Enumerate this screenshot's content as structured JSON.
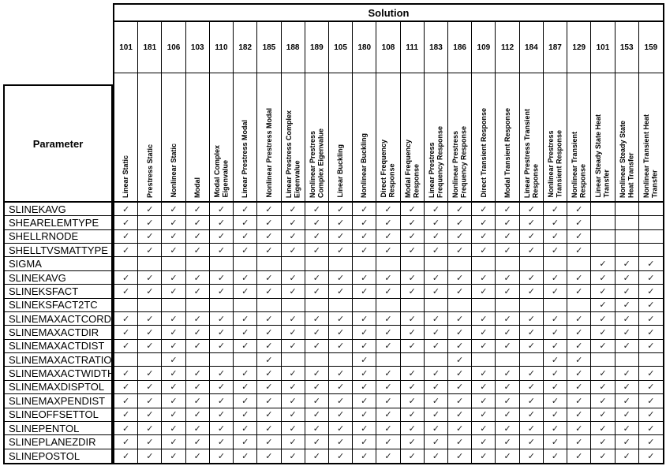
{
  "table": {
    "solution_header": "Solution",
    "parameter_header": "Parameter",
    "check_glyph": "✓",
    "colors": {
      "border": "#000000",
      "text": "#000000",
      "background": "#ffffff",
      "check": "#1c1c1c"
    },
    "columns": [
      {
        "code": "101",
        "label": "Linear Static"
      },
      {
        "code": "181",
        "label": "Prestress Static"
      },
      {
        "code": "106",
        "label": "Nonlinear Static"
      },
      {
        "code": "103",
        "label": "Modal"
      },
      {
        "code": "110",
        "label": "Modal Complex\nEigenvalue"
      },
      {
        "code": "182",
        "label": "Linear Prestress Modal"
      },
      {
        "code": "185",
        "label": "Nonlinear Prestress Modal"
      },
      {
        "code": "188",
        "label": "Linear Prestress Complex\nEigenvalue"
      },
      {
        "code": "189",
        "label": "Nonlinear Prestress\nComplex Eigenvalue"
      },
      {
        "code": "105",
        "label": "Linear Buckling"
      },
      {
        "code": "180",
        "label": "Nonlinear Buckling"
      },
      {
        "code": "108",
        "label": "Direct Frequency\nResponse"
      },
      {
        "code": "111",
        "label": "Modal Frequency\nResponse"
      },
      {
        "code": "183",
        "label": "Linear Prestress\nFrequency Response"
      },
      {
        "code": "186",
        "label": "Nonlinear Prestress\nFrequency Response"
      },
      {
        "code": "109",
        "label": "Direct Transient Response"
      },
      {
        "code": "112",
        "label": "Modal Transient Response"
      },
      {
        "code": "184",
        "label": "Linear Prestress Transient\nResponse"
      },
      {
        "code": "187",
        "label": "Nonlinear Prestress\nTransient Response"
      },
      {
        "code": "129",
        "label": "Nonlinear Transient\nResponse"
      },
      {
        "code": "101",
        "label": "Linear Steady State Heat\nTransfer"
      },
      {
        "code": "153",
        "label": "Nonlinear Steady State\nHeat Transfer"
      },
      {
        "code": "159",
        "label": "Nonlinear Transient Heat\nTransfer"
      }
    ],
    "rows": [
      {
        "name": "SLINEKAVG",
        "checks": [
          1,
          1,
          1,
          1,
          1,
          1,
          1,
          1,
          1,
          1,
          1,
          1,
          1,
          1,
          1,
          1,
          1,
          1,
          1,
          1,
          0,
          0,
          0
        ]
      },
      {
        "name": "SHEARELEMTYPE",
        "checks": [
          1,
          1,
          1,
          1,
          1,
          1,
          1,
          1,
          1,
          1,
          1,
          1,
          1,
          1,
          1,
          1,
          1,
          1,
          1,
          1,
          0,
          0,
          0
        ]
      },
      {
        "name": "SHELLRNODE",
        "checks": [
          1,
          1,
          1,
          1,
          1,
          1,
          1,
          1,
          1,
          1,
          1,
          1,
          1,
          1,
          1,
          1,
          1,
          1,
          1,
          1,
          0,
          0,
          0
        ]
      },
      {
        "name": "SHELLTVSMATTYPE",
        "checks": [
          1,
          1,
          1,
          1,
          1,
          1,
          1,
          1,
          1,
          1,
          1,
          1,
          1,
          1,
          1,
          1,
          1,
          1,
          1,
          1,
          0,
          0,
          0
        ]
      },
      {
        "name": "SIGMA",
        "checks": [
          0,
          0,
          0,
          0,
          0,
          0,
          0,
          0,
          0,
          0,
          0,
          0,
          0,
          0,
          0,
          0,
          0,
          0,
          0,
          0,
          1,
          1,
          1
        ]
      },
      {
        "name": "SLINEKAVG",
        "checks": [
          1,
          1,
          1,
          1,
          1,
          1,
          1,
          1,
          1,
          1,
          1,
          1,
          1,
          1,
          1,
          1,
          1,
          1,
          1,
          1,
          1,
          1,
          1
        ]
      },
      {
        "name": "SLINEKSFACT",
        "checks": [
          1,
          1,
          1,
          1,
          1,
          1,
          1,
          1,
          1,
          1,
          1,
          1,
          1,
          1,
          1,
          1,
          1,
          1,
          1,
          1,
          1,
          1,
          1
        ]
      },
      {
        "name": "SLINEKSFACT2TC",
        "checks": [
          0,
          0,
          0,
          0,
          0,
          0,
          0,
          0,
          0,
          0,
          0,
          0,
          0,
          0,
          0,
          0,
          0,
          0,
          0,
          0,
          1,
          1,
          1
        ]
      },
      {
        "name": "SLINEMAXACTCORD",
        "checks": [
          1,
          1,
          1,
          1,
          1,
          1,
          1,
          1,
          1,
          1,
          1,
          1,
          1,
          1,
          1,
          1,
          1,
          1,
          1,
          1,
          1,
          1,
          1
        ]
      },
      {
        "name": "SLINEMAXACTDIR",
        "checks": [
          1,
          1,
          1,
          1,
          1,
          1,
          1,
          1,
          1,
          1,
          1,
          1,
          1,
          1,
          1,
          1,
          1,
          1,
          1,
          1,
          1,
          1,
          1
        ]
      },
      {
        "name": "SLINEMAXACTDIST",
        "checks": [
          1,
          1,
          1,
          1,
          1,
          1,
          1,
          1,
          1,
          1,
          1,
          1,
          1,
          1,
          1,
          1,
          1,
          1,
          1,
          1,
          1,
          1,
          1
        ]
      },
      {
        "name": "SLINEMAXACTRATIO",
        "checks": [
          0,
          0,
          1,
          0,
          0,
          0,
          1,
          0,
          0,
          0,
          1,
          0,
          0,
          0,
          1,
          0,
          0,
          0,
          1,
          1,
          0,
          0,
          0
        ]
      },
      {
        "name": "SLINEMAXACTWIDTH",
        "checks": [
          1,
          1,
          1,
          1,
          1,
          1,
          1,
          1,
          1,
          1,
          1,
          1,
          1,
          1,
          1,
          1,
          1,
          1,
          1,
          1,
          1,
          1,
          1
        ]
      },
      {
        "name": "SLINEMAXDISPTOL",
        "checks": [
          1,
          1,
          1,
          1,
          1,
          1,
          1,
          1,
          1,
          1,
          1,
          1,
          1,
          1,
          1,
          1,
          1,
          1,
          1,
          1,
          1,
          1,
          1
        ]
      },
      {
        "name": "SLINEMAXPENDIST",
        "checks": [
          1,
          1,
          1,
          1,
          1,
          1,
          1,
          1,
          1,
          1,
          1,
          1,
          1,
          1,
          1,
          1,
          1,
          1,
          1,
          1,
          1,
          1,
          1
        ]
      },
      {
        "name": "SLINEOFFSETTOL",
        "checks": [
          1,
          1,
          1,
          1,
          1,
          1,
          1,
          1,
          1,
          1,
          1,
          1,
          1,
          1,
          1,
          1,
          1,
          1,
          1,
          1,
          1,
          1,
          1
        ]
      },
      {
        "name": "SLINEPENTOL",
        "checks": [
          1,
          1,
          1,
          1,
          1,
          1,
          1,
          1,
          1,
          1,
          1,
          1,
          1,
          1,
          1,
          1,
          1,
          1,
          1,
          1,
          1,
          1,
          1
        ]
      },
      {
        "name": "SLINEPLANEZDIR",
        "checks": [
          1,
          1,
          1,
          1,
          1,
          1,
          1,
          1,
          1,
          1,
          1,
          1,
          1,
          1,
          1,
          1,
          1,
          1,
          1,
          1,
          1,
          1,
          1
        ]
      },
      {
        "name": "SLINEPOSTOL",
        "checks": [
          1,
          1,
          1,
          1,
          1,
          1,
          1,
          1,
          1,
          1,
          1,
          1,
          1,
          1,
          1,
          1,
          1,
          1,
          1,
          1,
          1,
          1,
          1
        ]
      }
    ]
  }
}
